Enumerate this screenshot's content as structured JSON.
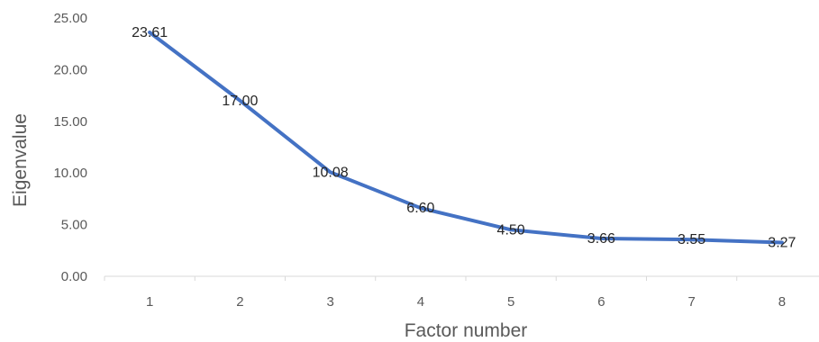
{
  "chart_data": {
    "type": "line",
    "title": "",
    "xlabel": "Factor number",
    "ylabel": "Eigenvalue",
    "categories": [
      "1",
      "2",
      "3",
      "4",
      "5",
      "6",
      "7",
      "8"
    ],
    "series": [
      {
        "values": [
          23.61,
          17.0,
          10.08,
          6.6,
          4.5,
          3.66,
          3.55,
          3.27
        ],
        "labels": [
          "23.61",
          "17.00",
          "10.08",
          "6.60",
          "4.50",
          "3.66",
          "3.55",
          "3.27"
        ]
      }
    ],
    "y_ticks": [
      "0.00",
      "5.00",
      "10.00",
      "15.00",
      "20.00",
      "25.00"
    ],
    "ylim": [
      0,
      25
    ],
    "grid": false,
    "legend": "none",
    "colors": {
      "line": "#4472c4",
      "axis": "#d9d9d9"
    }
  }
}
